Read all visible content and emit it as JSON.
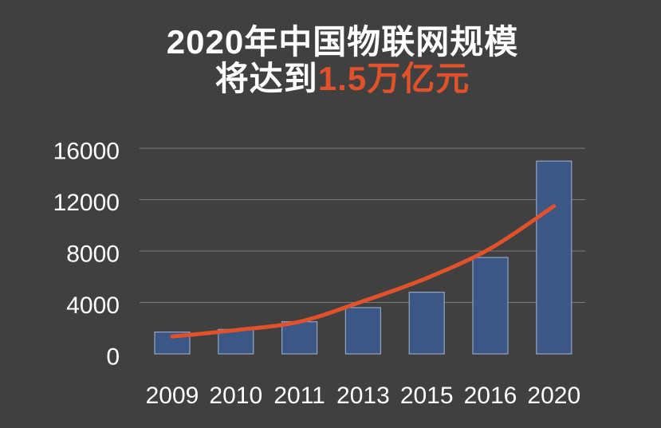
{
  "title": {
    "line1": "2020年中国物联网规模",
    "line2_prefix": "将达到",
    "line2_highlight": "1.5万亿元"
  },
  "chart_data": {
    "type": "bar",
    "title": "2020年中国物联网规模将达到1.5万亿元",
    "categories": [
      "2009",
      "2010",
      "2011",
      "2013",
      "2015",
      "2016",
      "2020"
    ],
    "series": [
      {
        "name": "bars",
        "type": "bar",
        "values": [
          1700,
          1900,
          2500,
          3600,
          4800,
          7500,
          15000
        ]
      },
      {
        "name": "trendline",
        "type": "line",
        "smooth": true,
        "values": [
          1350,
          1850,
          2500,
          4100,
          5900,
          8200,
          11500
        ]
      }
    ],
    "xlabel": "",
    "ylabel": "",
    "yticks": [
      0,
      4000,
      8000,
      12000,
      16000
    ],
    "ylim": [
      0,
      16500
    ],
    "grid": true,
    "legend": "none"
  },
  "colors": {
    "background": "#404040",
    "bar_fill": "#3A5786",
    "bar_border": "#97A3C2",
    "trendline": "#E2512A",
    "gridline": "#7A7A7A",
    "axis_text": "#FFFFFF",
    "title_text": "#FFFFFF",
    "title_highlight": "#E2512A"
  }
}
